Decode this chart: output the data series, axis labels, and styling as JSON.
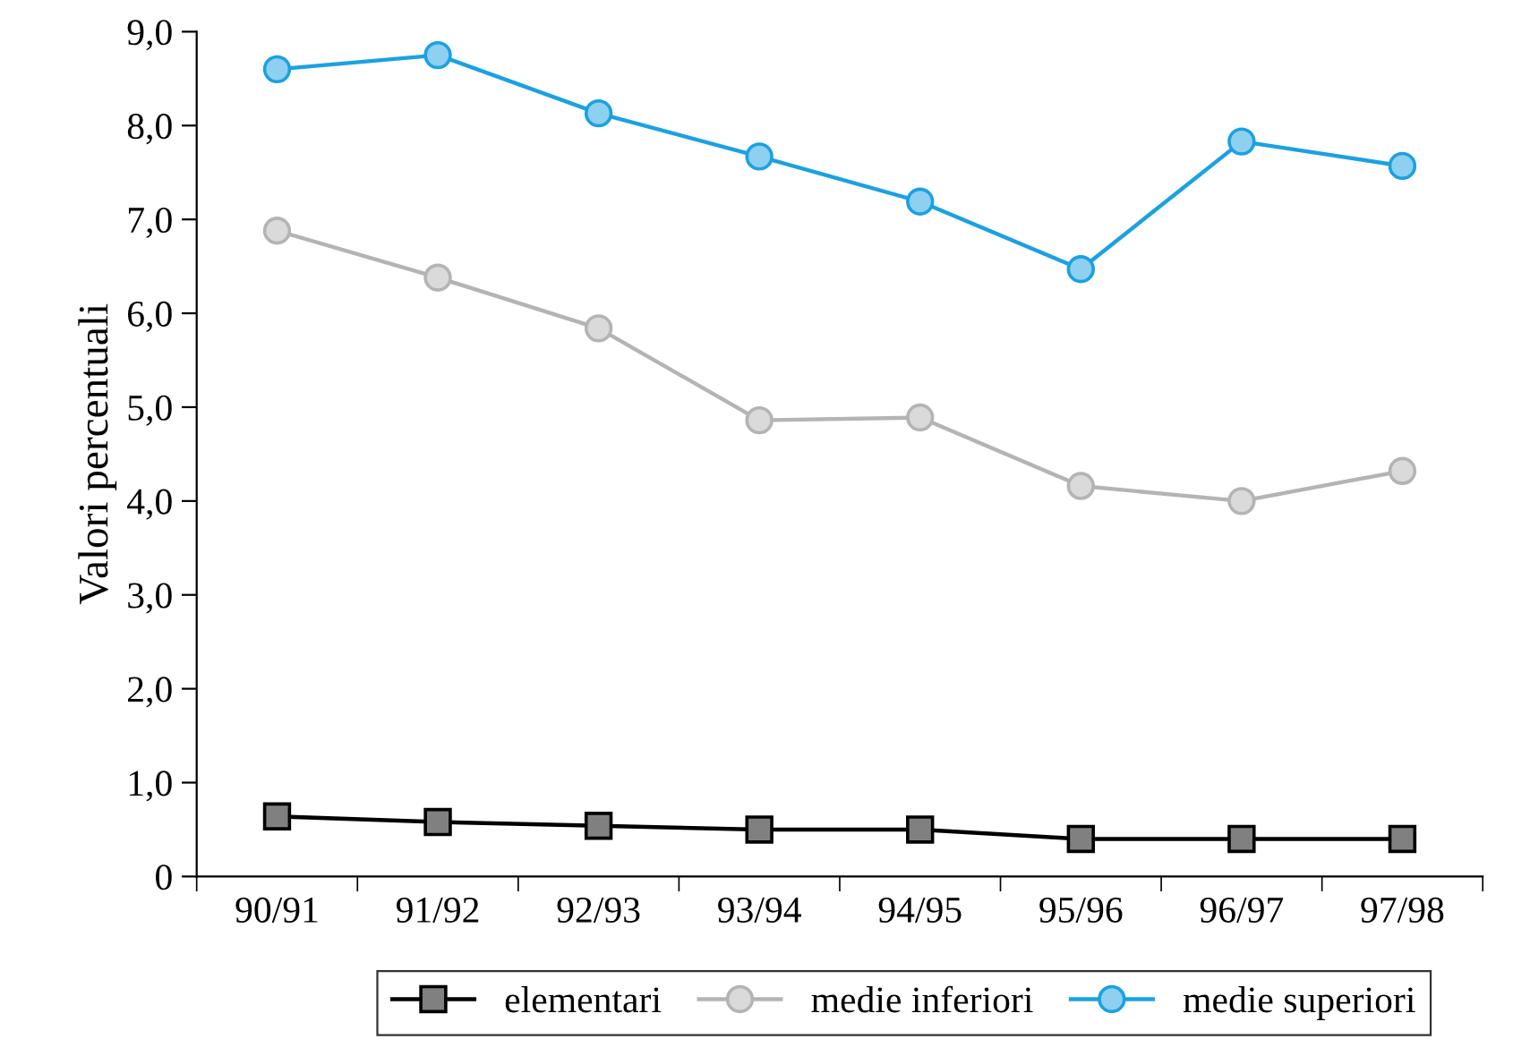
{
  "chart_data": {
    "type": "line",
    "ylabel": "Valori percentuali",
    "categories": [
      "90/91",
      "91/92",
      "92/93",
      "93/94",
      "94/95",
      "95/96",
      "96/97",
      "97/98"
    ],
    "series": [
      {
        "name": "elementari",
        "color": "#000000",
        "marker": "square",
        "values": [
          0.64,
          0.58,
          0.54,
          0.5,
          0.5,
          0.4,
          0.4,
          0.4
        ]
      },
      {
        "name": "medie inferiori",
        "color": "#b4b4b4",
        "marker": "circle",
        "values": [
          6.88,
          6.38,
          5.84,
          4.86,
          4.89,
          4.16,
          4.0,
          4.32
        ]
      },
      {
        "name": "medie superiori",
        "color": "#1ba1e2",
        "marker": "circle",
        "values": [
          8.6,
          8.75,
          8.13,
          7.67,
          7.19,
          6.47,
          7.83,
          7.57
        ]
      }
    ],
    "ylim": [
      0,
      9
    ],
    "yticks": [
      {
        "value": 0,
        "label": "0"
      },
      {
        "value": 1,
        "label": "1,0"
      },
      {
        "value": 2,
        "label": "2,0"
      },
      {
        "value": 3,
        "label": "3,0"
      },
      {
        "value": 4,
        "label": "4,0"
      },
      {
        "value": 5,
        "label": "5,0"
      },
      {
        "value": 6,
        "label": "6,0"
      },
      {
        "value": 7,
        "label": "7,0"
      },
      {
        "value": 8,
        "label": "8,0"
      },
      {
        "value": 9,
        "label": "9,0"
      }
    ],
    "grid": false,
    "legend": "bottom",
    "line_style": "solid"
  }
}
